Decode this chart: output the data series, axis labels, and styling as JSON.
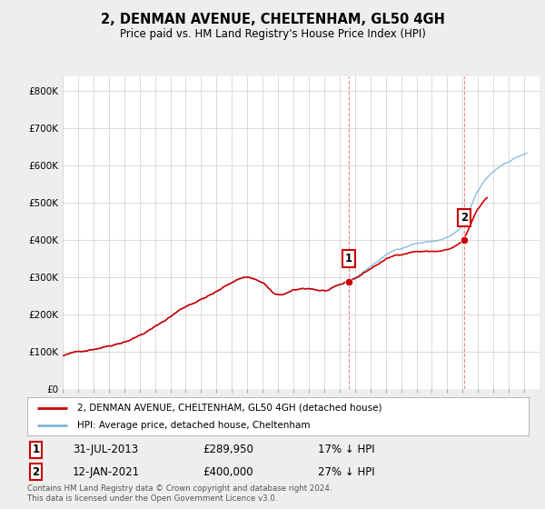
{
  "title": "2, DENMAN AVENUE, CHELTENHAM, GL50 4GH",
  "subtitle": "Price paid vs. HM Land Registry's House Price Index (HPI)",
  "legend_line1": "2, DENMAN AVENUE, CHELTENHAM, GL50 4GH (detached house)",
  "legend_line2": "HPI: Average price, detached house, Cheltenham",
  "footer": "Contains HM Land Registry data © Crown copyright and database right 2024.\nThis data is licensed under the Open Government Licence v3.0.",
  "transaction1_date": "31-JUL-2013",
  "transaction1_price": 289950,
  "transaction1_label": "1",
  "transaction1_hpi_diff": "17% ↓ HPI",
  "transaction2_date": "12-JAN-2021",
  "transaction2_price": 400000,
  "transaction2_label": "2",
  "transaction2_hpi_diff": "27% ↓ HPI",
  "hpi_color": "#7ab8d9",
  "price_color": "#cc0000",
  "marker_color": "#cc0000",
  "vline_color": "#cc0000",
  "ylim": [
    0,
    840000
  ],
  "yticks": [
    0,
    100000,
    200000,
    300000,
    400000,
    500000,
    600000,
    700000,
    800000
  ],
  "ytick_labels": [
    "£0",
    "£100K",
    "£200K",
    "£300K",
    "£400K",
    "£500K",
    "£600K",
    "£700K",
    "£800K"
  ],
  "background_color": "#eeeeee",
  "plot_background": "#ffffff",
  "grid_color": "#cccccc"
}
